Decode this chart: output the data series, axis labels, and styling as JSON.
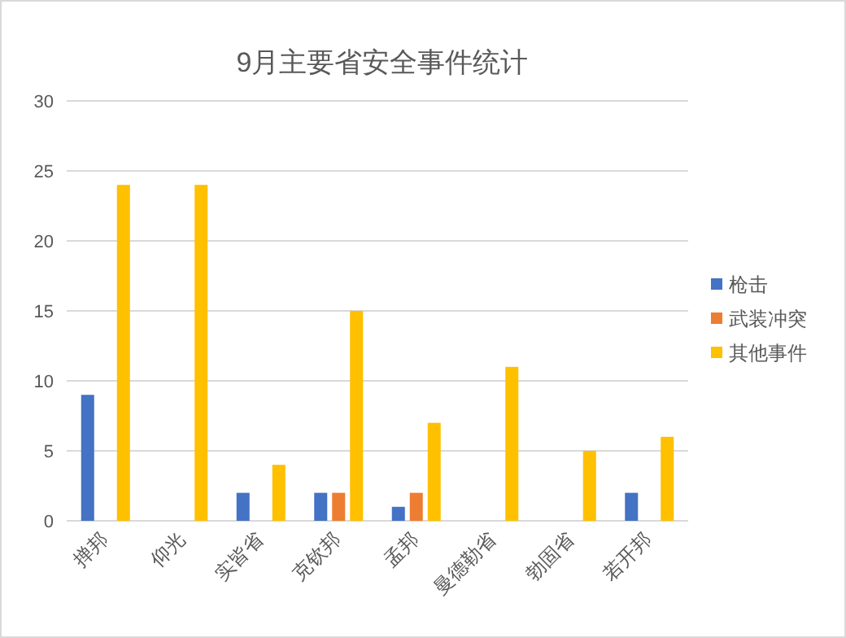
{
  "chart_data": {
    "type": "bar",
    "title": "9月主要省安全事件统计",
    "categories": [
      "掸邦",
      "仰光",
      "实皆省",
      "克钦邦",
      "孟邦",
      "曼德勒省",
      "勃固省",
      "若开邦"
    ],
    "series": [
      {
        "name": "枪击",
        "color": "#4472c4",
        "values": [
          9,
          0,
          2,
          2,
          1,
          0,
          0,
          2
        ]
      },
      {
        "name": "武装冲突",
        "color": "#ed7d31",
        "values": [
          0,
          0,
          0,
          2,
          2,
          0,
          0,
          0
        ]
      },
      {
        "name": "其他事件",
        "color": "#ffc000",
        "values": [
          24,
          24,
          4,
          15,
          7,
          11,
          5,
          6
        ]
      }
    ],
    "ylim": [
      0,
      30
    ],
    "yticks": [
      0,
      5,
      10,
      15,
      20,
      25,
      30
    ],
    "grid": "y",
    "legend": "right"
  }
}
